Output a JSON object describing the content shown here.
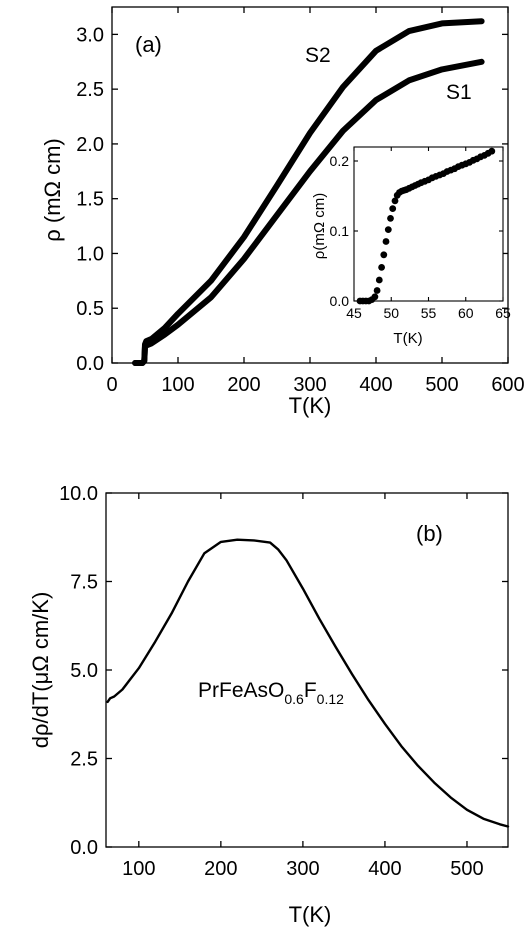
{
  "chart_data": [
    {
      "type": "line",
      "panel_label": "(a)",
      "xlabel": "T(K)",
      "ylabel": "ρ (mΩ cm)",
      "xlim": [
        0,
        600
      ],
      "ylim": [
        0,
        3.25
      ],
      "xticks": [
        0,
        100,
        200,
        300,
        400,
        500,
        600
      ],
      "yticks": [
        0.0,
        0.5,
        1.0,
        1.5,
        2.0,
        2.5,
        3.0
      ],
      "xtick_labels": [
        "0",
        "100",
        "200",
        "300",
        "400",
        "500",
        "600"
      ],
      "ytick_labels": [
        "0.0",
        "0.5",
        "1.0",
        "1.5",
        "2.0",
        "2.5",
        "3.0"
      ],
      "color": "#000000",
      "series": [
        {
          "name": "S1",
          "x": [
            35,
            46,
            49,
            50,
            52,
            60,
            80,
            100,
            150,
            200,
            250,
            300,
            350,
            400,
            450,
            500,
            560
          ],
          "y": [
            0,
            0,
            0.02,
            0.15,
            0.16,
            0.18,
            0.26,
            0.35,
            0.6,
            0.95,
            1.35,
            1.75,
            2.12,
            2.4,
            2.58,
            2.68,
            2.75
          ]
        },
        {
          "name": "S2",
          "x": [
            35,
            46,
            49,
            50,
            52,
            60,
            80,
            100,
            150,
            200,
            250,
            300,
            350,
            400,
            450,
            500,
            560
          ],
          "y": [
            0,
            0,
            0.02,
            0.17,
            0.2,
            0.22,
            0.32,
            0.45,
            0.75,
            1.15,
            1.62,
            2.1,
            2.52,
            2.85,
            3.03,
            3.1,
            3.12
          ]
        }
      ],
      "inset": {
        "type": "scatter",
        "xlabel": "T(K)",
        "ylabel": "ρ(mΩ cm)",
        "xlim": [
          45,
          65
        ],
        "ylim": [
          0,
          0.22
        ],
        "xticks": [
          45,
          50,
          55,
          60,
          65
        ],
        "yticks": [
          0.0,
          0.1,
          0.2
        ],
        "xtick_labels": [
          "45",
          "50",
          "55",
          "60",
          "65"
        ],
        "ytick_labels": [
          "0.0",
          "0.1",
          "0.2"
        ],
        "x": [
          45.8,
          46.2,
          46.6,
          47,
          47.4,
          47.8,
          48.1,
          48.4,
          48.7,
          49,
          49.3,
          49.6,
          49.9,
          50.2,
          50.5,
          50.8,
          51.1,
          51.4,
          51.7,
          52,
          52.4,
          52.8,
          53.2,
          53.6,
          54,
          54.5,
          55,
          55.5,
          56,
          56.5,
          57,
          57.5,
          58,
          58.5,
          59,
          59.5,
          60,
          60.5,
          61,
          61.5,
          62,
          62.5,
          63,
          63.5
        ],
        "y": [
          0,
          0,
          0,
          0,
          0.002,
          0.006,
          0.015,
          0.03,
          0.048,
          0.066,
          0.085,
          0.102,
          0.118,
          0.132,
          0.143,
          0.151,
          0.155,
          0.157,
          0.158,
          0.159,
          0.161,
          0.163,
          0.165,
          0.167,
          0.169,
          0.171,
          0.173,
          0.176,
          0.178,
          0.18,
          0.182,
          0.185,
          0.187,
          0.189,
          0.192,
          0.194,
          0.196,
          0.198,
          0.201,
          0.203,
          0.206,
          0.208,
          0.211,
          0.214
        ]
      }
    },
    {
      "type": "line",
      "panel_label": "(b)",
      "annotation": {
        "main": "PrFeAsO",
        "sub1": "0.6",
        "mid": "F",
        "sub2": "0.12"
      },
      "xlabel": "T(K)",
      "ylabel": "dρ/dT(μΩ cm/K)",
      "xlim": [
        60,
        550
      ],
      "ylim": [
        0,
        10
      ],
      "xticks": [
        100,
        200,
        300,
        400,
        500
      ],
      "yticks": [
        0.0,
        2.5,
        5.0,
        7.5,
        10.0
      ],
      "xtick_labels": [
        "100",
        "200",
        "300",
        "400",
        "500"
      ],
      "ytick_labels": [
        "0.0",
        "2.5",
        "5.0",
        "7.5",
        "10.0"
      ],
      "color": "#000000",
      "series": [
        {
          "x": [
            62,
            65,
            70,
            80,
            100,
            120,
            140,
            160,
            180,
            200,
            220,
            240,
            260,
            270,
            280,
            300,
            320,
            340,
            360,
            380,
            400,
            420,
            440,
            460,
            480,
            500,
            520,
            540,
            550
          ],
          "y": [
            4.1,
            4.2,
            4.25,
            4.45,
            5.05,
            5.8,
            6.6,
            7.5,
            8.3,
            8.62,
            8.68,
            8.66,
            8.6,
            8.4,
            8.1,
            7.3,
            6.45,
            5.65,
            4.88,
            4.15,
            3.48,
            2.85,
            2.3,
            1.82,
            1.4,
            1.05,
            0.8,
            0.64,
            0.58
          ]
        }
      ]
    }
  ]
}
